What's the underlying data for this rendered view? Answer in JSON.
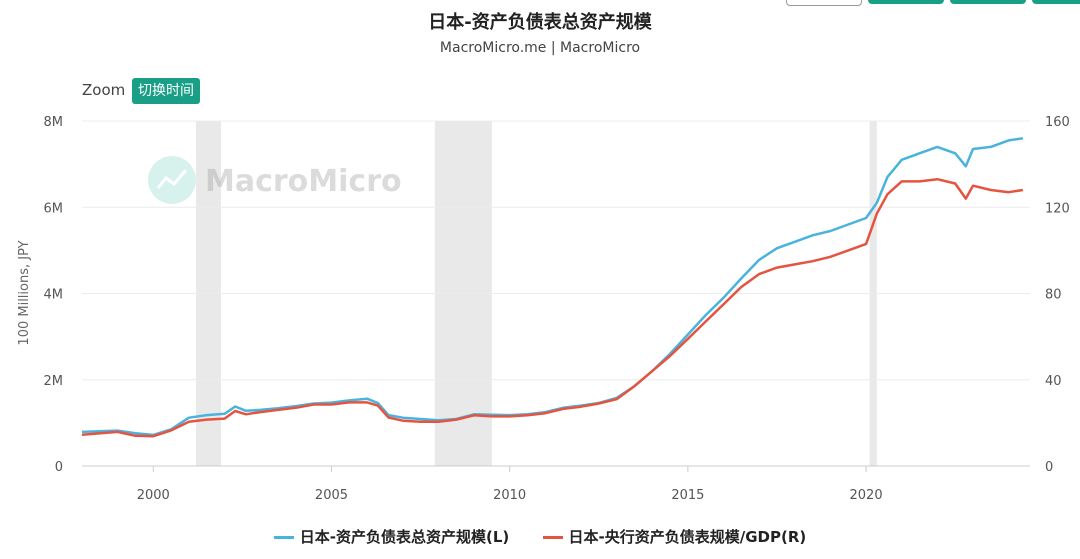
{
  "header": {
    "title": "日本-资产负债表总资产规模",
    "subtitle": "MacroMicro.me | MacroMicro"
  },
  "toolbar": {
    "zoom_label": "Zoom",
    "switch_time_label": "切换时间"
  },
  "colors": {
    "series_left": "#4ab3dd",
    "series_right": "#e4543f",
    "recession_band": "#e9e9e9",
    "accent": "#1a9f87"
  },
  "watermark": {
    "text": "MacroMicro"
  },
  "chart_data": {
    "type": "line",
    "title": "日本-资产负债表总资产规模",
    "subtitle": "MacroMicro.me | MacroMicro",
    "xlim": [
      1998.0,
      2024.6
    ],
    "x_ticks": [
      "2000",
      "2005",
      "2010",
      "2015",
      "2020"
    ],
    "left_axis": {
      "label": "100 Millions, JPY",
      "ylim": [
        0,
        8000000
      ],
      "ticks": [
        "0",
        "2M",
        "4M",
        "6M",
        "8M"
      ]
    },
    "right_axis": {
      "label": "",
      "ylim": [
        0,
        160
      ],
      "ticks": [
        "0",
        "40",
        "80",
        "120",
        "160"
      ]
    },
    "shaded_periods": [
      [
        2001.2,
        2001.9
      ],
      [
        2007.9,
        2009.5
      ],
      [
        2020.1,
        2020.3
      ]
    ],
    "grid": "horizontal",
    "legend_position": "bottom",
    "series": [
      {
        "name": "日本-资产负债表总资产规模(L)",
        "axis": "left",
        "x": [
          1998.0,
          1999.0,
          1999.5,
          2000.0,
          2000.5,
          2001.0,
          2001.5,
          2002.0,
          2002.3,
          2002.6,
          2003.0,
          2003.5,
          2004.0,
          2004.5,
          2005.0,
          2005.5,
          2006.0,
          2006.3,
          2006.6,
          2007.0,
          2007.5,
          2008.0,
          2008.5,
          2009.0,
          2009.5,
          2010.0,
          2010.5,
          2011.0,
          2011.5,
          2012.0,
          2012.5,
          2013.0,
          2013.5,
          2014.0,
          2014.5,
          2015.0,
          2015.5,
          2016.0,
          2016.5,
          2017.0,
          2017.5,
          2018.0,
          2018.5,
          2019.0,
          2019.5,
          2020.0,
          2020.3,
          2020.6,
          2021.0,
          2021.5,
          2022.0,
          2022.5,
          2022.8,
          2023.0,
          2023.5,
          2024.0,
          2024.4
        ],
        "values": [
          790000,
          820000,
          760000,
          720000,
          850000,
          1120000,
          1180000,
          1210000,
          1380000,
          1280000,
          1300000,
          1340000,
          1390000,
          1450000,
          1470000,
          1520000,
          1560000,
          1460000,
          1180000,
          1120000,
          1090000,
          1060000,
          1090000,
          1200000,
          1190000,
          1180000,
          1200000,
          1250000,
          1350000,
          1400000,
          1460000,
          1580000,
          1850000,
          2200000,
          2600000,
          3050000,
          3500000,
          3900000,
          4350000,
          4780000,
          5050000,
          5200000,
          5350000,
          5450000,
          5600000,
          5750000,
          6100000,
          6700000,
          7100000,
          7250000,
          7400000,
          7250000,
          6950000,
          7350000,
          7400000,
          7550000,
          7600000
        ]
      },
      {
        "name": "日本-央行资产负债表规模/GDP(R)",
        "axis": "right",
        "x": [
          1998.0,
          1999.0,
          1999.5,
          2000.0,
          2000.5,
          2001.0,
          2001.5,
          2002.0,
          2002.3,
          2002.6,
          2003.0,
          2003.5,
          2004.0,
          2004.5,
          2005.0,
          2005.5,
          2006.0,
          2006.3,
          2006.6,
          2007.0,
          2007.5,
          2008.0,
          2008.5,
          2009.0,
          2009.5,
          2010.0,
          2010.5,
          2011.0,
          2011.5,
          2012.0,
          2012.5,
          2013.0,
          2013.5,
          2014.0,
          2014.5,
          2015.0,
          2015.5,
          2016.0,
          2016.5,
          2017.0,
          2017.5,
          2018.0,
          2018.5,
          2019.0,
          2019.5,
          2020.0,
          2020.3,
          2020.6,
          2021.0,
          2021.5,
          2022.0,
          2022.5,
          2022.8,
          2023.0,
          2023.5,
          2024.0,
          2024.4
        ],
        "values": [
          14.5,
          15.8,
          14.0,
          13.8,
          16.5,
          20.5,
          21.5,
          22.0,
          25.5,
          24.0,
          25.0,
          26.0,
          27.0,
          28.5,
          28.5,
          29.5,
          29.5,
          28.0,
          22.5,
          21.0,
          20.5,
          20.5,
          21.5,
          23.5,
          23.0,
          23.0,
          23.5,
          24.5,
          26.5,
          27.5,
          29.0,
          31.0,
          37.0,
          44.0,
          51.0,
          59.0,
          67.0,
          75.0,
          83.0,
          89.0,
          92.0,
          93.5,
          95.0,
          97.0,
          100.0,
          103.0,
          117.0,
          126.0,
          132.0,
          132.0,
          133.0,
          131.0,
          124.0,
          130.0,
          128.0,
          127.0,
          128.0
        ]
      }
    ]
  }
}
